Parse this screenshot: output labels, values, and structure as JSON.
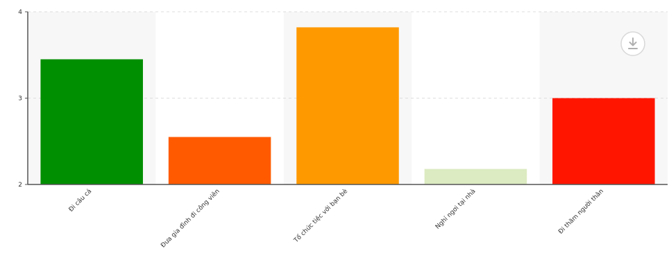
{
  "chart_data": {
    "type": "bar",
    "categories": [
      "Đi câu cá",
      "Đưa gia đình đi công viên",
      "Tổ chức tiệc với bạn bè",
      "Nghỉ ngơi tại nhà",
      "Đi thăm người thân"
    ],
    "values": [
      3.45,
      2.55,
      3.82,
      2.18,
      3.0
    ],
    "colors": [
      "#008f00",
      "#ff5a00",
      "#ff9900",
      "#dcebc1",
      "#ff1500"
    ],
    "ylim": [
      2,
      4
    ],
    "yticks": [
      2,
      3,
      4
    ],
    "title": "",
    "xlabel": "",
    "ylabel": "",
    "grid": true,
    "band_colors": [
      "#f7f7f7",
      "#ffffff"
    ]
  },
  "toolbar": {
    "download_icon": "download-icon"
  }
}
